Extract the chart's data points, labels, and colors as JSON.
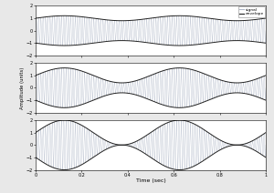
{
  "carrier_freq": 100,
  "mod_freq": 2,
  "duration": 1.0,
  "sample_rate": 10000,
  "MI_values": [
    0.2,
    0.6,
    1.0
  ],
  "ylim": [
    -2,
    2
  ],
  "yticks": [
    -2,
    -1,
    0,
    1,
    2
  ],
  "xticks": [
    0,
    0.2,
    0.4,
    0.6,
    0.8,
    1.0
  ],
  "xtick_labels": [
    "0",
    "0.2",
    "0.4",
    "0.6",
    "0.8",
    "1"
  ],
  "xlabel": "Time (sec)",
  "ylabel": "Amplitude (units)",
  "signal_color": "#b0b8c8",
  "envelope_color": "#222222",
  "legend_labels": [
    "signal",
    "envelope"
  ],
  "background_color": "#e8e8e8",
  "axes_bg_color": "#ffffff",
  "fig_width": 3.0,
  "fig_height": 2.12,
  "dpi": 100
}
